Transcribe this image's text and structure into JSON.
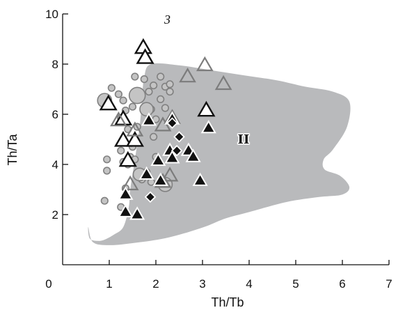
{
  "chart_data": {
    "type": "scatter",
    "panel_label": "3",
    "xlabel": "Th/Tb",
    "ylabel": "Th/Ta",
    "xlim": [
      0,
      7
    ],
    "ylim": [
      0,
      10
    ],
    "x_ticks": [
      0,
      1,
      2,
      3,
      4,
      5,
      6,
      7
    ],
    "y_ticks": [
      2,
      4,
      6,
      8,
      10
    ],
    "grid": false,
    "colors": {
      "field": "#b9babc",
      "circle_fill": "#c4c4c4",
      "circle_stroke": "#808080",
      "open_triangle_stroke": "#111111",
      "gray_triangle_stroke": "#7c7c7c",
      "filled_marker": "#111111"
    },
    "field": {
      "label": "II",
      "label_position": [
        3.88,
        5.0
      ],
      "boundary": [
        [
          0.55,
          1.5
        ],
        [
          0.58,
          1.05
        ],
        [
          0.75,
          0.95
        ],
        [
          0.9,
          1.0
        ],
        [
          1.1,
          1.2
        ],
        [
          1.3,
          1.5
        ],
        [
          1.42,
          2.3
        ],
        [
          1.45,
          3.0
        ],
        [
          1.55,
          4.2
        ],
        [
          1.65,
          5.5
        ],
        [
          1.7,
          6.5
        ],
        [
          1.75,
          7.5
        ],
        [
          1.9,
          8.0
        ],
        [
          2.5,
          7.95
        ],
        [
          3.2,
          7.75
        ],
        [
          3.9,
          7.55
        ],
        [
          4.6,
          7.35
        ],
        [
          5.2,
          7.1
        ],
        [
          5.8,
          6.9
        ],
        [
          6.15,
          6.5
        ],
        [
          6.1,
          5.5
        ],
        [
          5.8,
          4.6
        ],
        [
          5.6,
          4.2
        ],
        [
          5.62,
          3.8
        ],
        [
          5.95,
          3.55
        ],
        [
          6.15,
          3.1
        ],
        [
          6.0,
          2.8
        ],
        [
          5.5,
          2.7
        ],
        [
          4.8,
          2.5
        ],
        [
          4.0,
          2.1
        ],
        [
          3.5,
          1.85
        ],
        [
          3.1,
          1.55
        ],
        [
          2.6,
          1.25
        ],
        [
          2.1,
          1.02
        ],
        [
          1.5,
          0.86
        ],
        [
          1.0,
          0.78
        ],
        [
          0.65,
          0.9
        ]
      ]
    },
    "series": [
      {
        "name": "",
        "marker": "circle",
        "style": "gray-filled",
        "points": [
          [
            0.9,
            2.55
          ],
          [
            1.05,
            7.05
          ],
          [
            1.2,
            6.8
          ],
          [
            1.3,
            6.55
          ],
          [
            1.35,
            6.15
          ],
          [
            1.25,
            5.85
          ],
          [
            1.4,
            5.4
          ],
          [
            1.6,
            5.5
          ],
          [
            0.95,
            3.75
          ],
          [
            0.95,
            4.2
          ],
          [
            1.3,
            4.1
          ],
          [
            1.45,
            4.3
          ],
          [
            1.5,
            4.7
          ],
          [
            1.25,
            4.55
          ],
          [
            1.35,
            3.05
          ],
          [
            1.25,
            2.3
          ],
          [
            1.7,
            3.4
          ],
          [
            1.8,
            3.7
          ],
          [
            1.9,
            3.3
          ],
          [
            2.1,
            3.35
          ],
          [
            1.95,
            5.1
          ],
          [
            2.0,
            5.8
          ],
          [
            1.9,
            6.2
          ],
          [
            1.85,
            6.9
          ],
          [
            1.95,
            7.15
          ],
          [
            1.75,
            7.4
          ],
          [
            1.55,
            7.5
          ],
          [
            2.1,
            7.5
          ],
          [
            2.2,
            7.1
          ],
          [
            2.2,
            6.25
          ],
          [
            2.3,
            7.2
          ],
          [
            2.3,
            6.9
          ],
          [
            1.5,
            6.3
          ],
          [
            2.1,
            6.6
          ],
          [
            1.55,
            4.2
          ],
          [
            2.0,
            4.3
          ],
          [
            1.6,
            6.75
          ],
          [
            2.2,
            3.2
          ],
          [
            1.8,
            6.2
          ],
          [
            1.65,
            3.6
          ],
          [
            0.9,
            6.55
          ],
          [
            1.4,
            4.0
          ]
        ],
        "sizes": [
          1,
          1,
          1,
          1,
          1,
          1,
          1,
          1,
          1,
          1,
          1,
          1,
          1,
          1,
          1,
          1,
          1,
          1,
          1,
          1,
          1,
          1,
          1,
          1,
          1,
          1,
          1,
          1,
          1,
          1,
          1,
          1,
          1,
          1,
          1,
          1,
          2.4,
          2.1,
          2,
          1.9,
          2.1,
          1
        ]
      },
      {
        "name": "",
        "marker": "triangle",
        "style": "open-black",
        "points": [
          [
            1.73,
            8.65
          ],
          [
            1.77,
            8.25
          ],
          [
            0.98,
            6.4
          ],
          [
            1.3,
            5.8
          ],
          [
            1.3,
            4.95
          ],
          [
            1.55,
            4.95
          ],
          [
            1.4,
            4.15
          ],
          [
            3.08,
            6.15
          ]
        ]
      },
      {
        "name": "",
        "marker": "triangle",
        "style": "open-gray",
        "points": [
          [
            3.05,
            7.95
          ],
          [
            2.68,
            7.5
          ],
          [
            3.45,
            7.2
          ],
          [
            1.2,
            5.75
          ],
          [
            2.15,
            5.55
          ],
          [
            2.35,
            5.85
          ],
          [
            1.55,
            5.35
          ],
          [
            1.45,
            3.2
          ],
          [
            2.3,
            3.55
          ],
          [
            2.15,
            3.3
          ]
        ]
      },
      {
        "name": "",
        "marker": "triangle",
        "style": "filled-black",
        "points": [
          [
            2.35,
            5.8
          ],
          [
            3.13,
            5.45
          ],
          [
            1.85,
            5.75
          ],
          [
            2.05,
            4.15
          ],
          [
            2.3,
            4.55
          ],
          [
            2.35,
            4.25
          ],
          [
            2.7,
            4.55
          ],
          [
            2.8,
            4.3
          ],
          [
            1.8,
            3.6
          ],
          [
            2.1,
            3.35
          ],
          [
            2.95,
            3.35
          ],
          [
            1.35,
            2.8
          ],
          [
            1.35,
            2.1
          ],
          [
            1.6,
            2.0
          ]
        ]
      },
      {
        "name": "",
        "marker": "diamond",
        "style": "filled-black",
        "points": [
          [
            2.35,
            5.65
          ],
          [
            2.5,
            5.1
          ],
          [
            2.45,
            4.55
          ],
          [
            1.88,
            2.7
          ]
        ]
      }
    ]
  }
}
